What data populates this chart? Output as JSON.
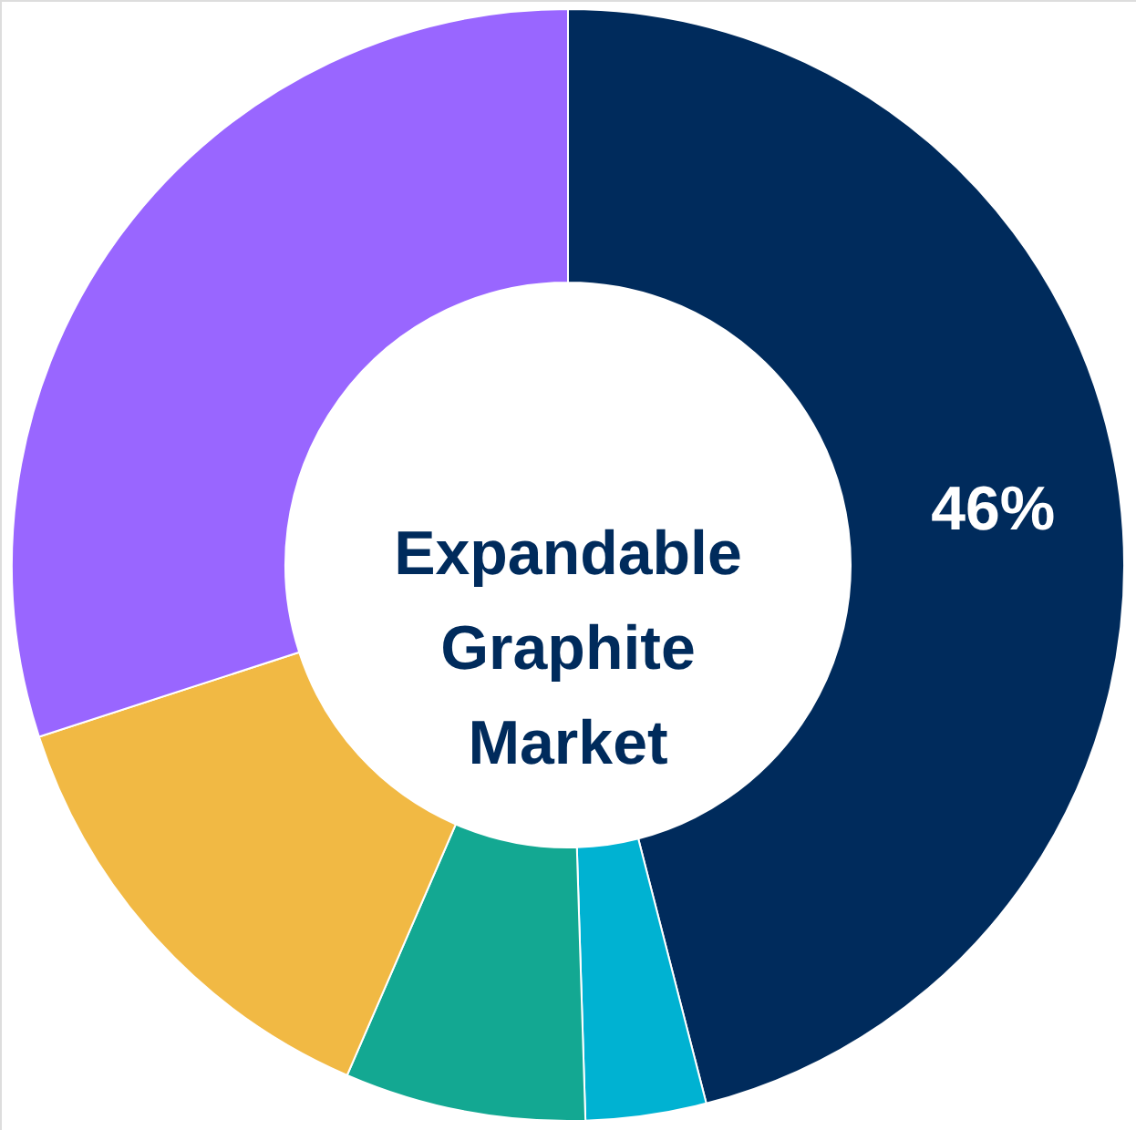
{
  "chart_data": {
    "type": "donut",
    "title": "Expandable Graphite Market",
    "categories": [
      null,
      null,
      null,
      null,
      null
    ],
    "values": [
      46,
      3.5,
      7,
      13.5,
      30
    ],
    "colors": [
      "#002b5c",
      "#00b2d2",
      "#13a892",
      "#f1b944",
      "#9966ff"
    ],
    "value_labels": [
      "46%",
      null,
      null,
      null,
      null
    ],
    "legend": false
  }
}
